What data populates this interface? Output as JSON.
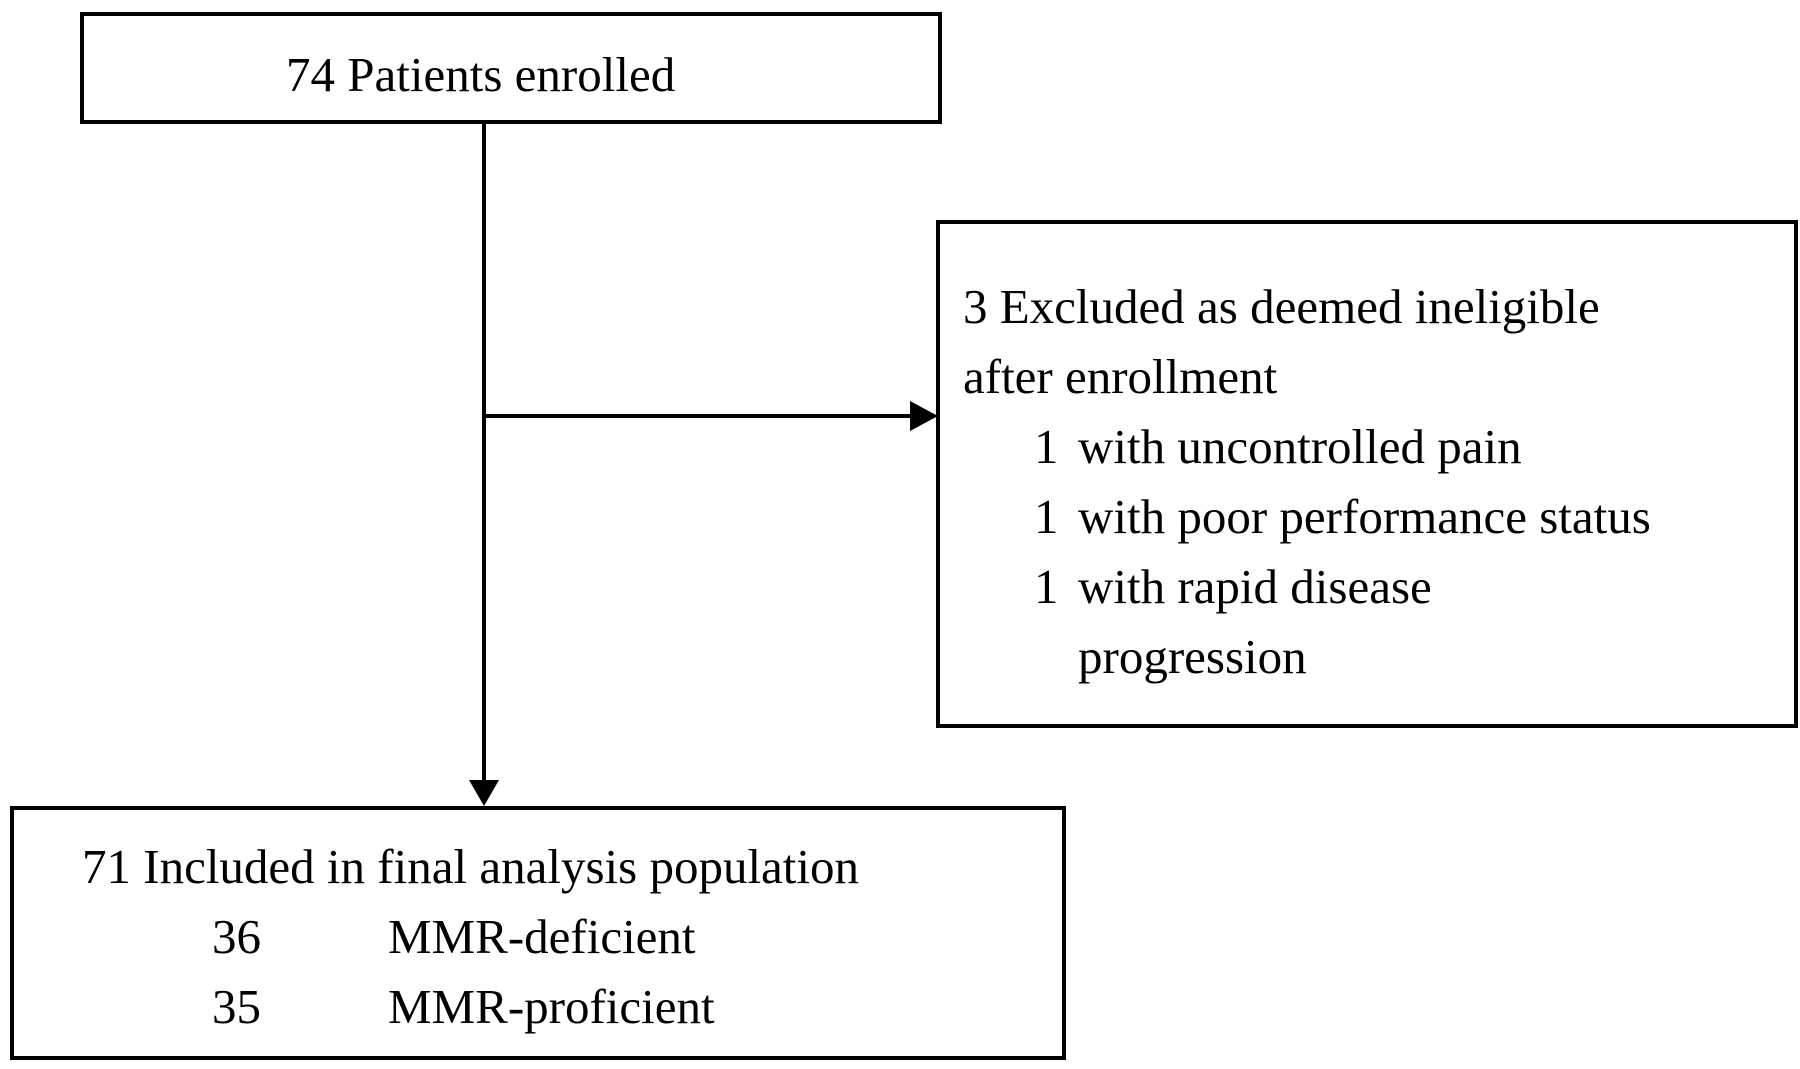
{
  "enrolled": {
    "text": "74 Patients enrolled"
  },
  "excluded": {
    "heading_line1": "3 Excluded as deemed ineligible",
    "heading_line2": "after enrollment",
    "reasons": [
      {
        "count": "1",
        "text": "with uncontrolled pain"
      },
      {
        "count": "1",
        "text": "with poor performance status"
      },
      {
        "count": "1",
        "text": "with rapid disease",
        "continuation": "progression"
      }
    ]
  },
  "included": {
    "heading": "71 Included in final analysis population",
    "groups": [
      {
        "count": "36",
        "label": "MMR-deficient"
      },
      {
        "count": "35",
        "label": "MMR-proficient"
      }
    ]
  },
  "colors": {
    "stroke": "#000000",
    "background": "#ffffff"
  }
}
